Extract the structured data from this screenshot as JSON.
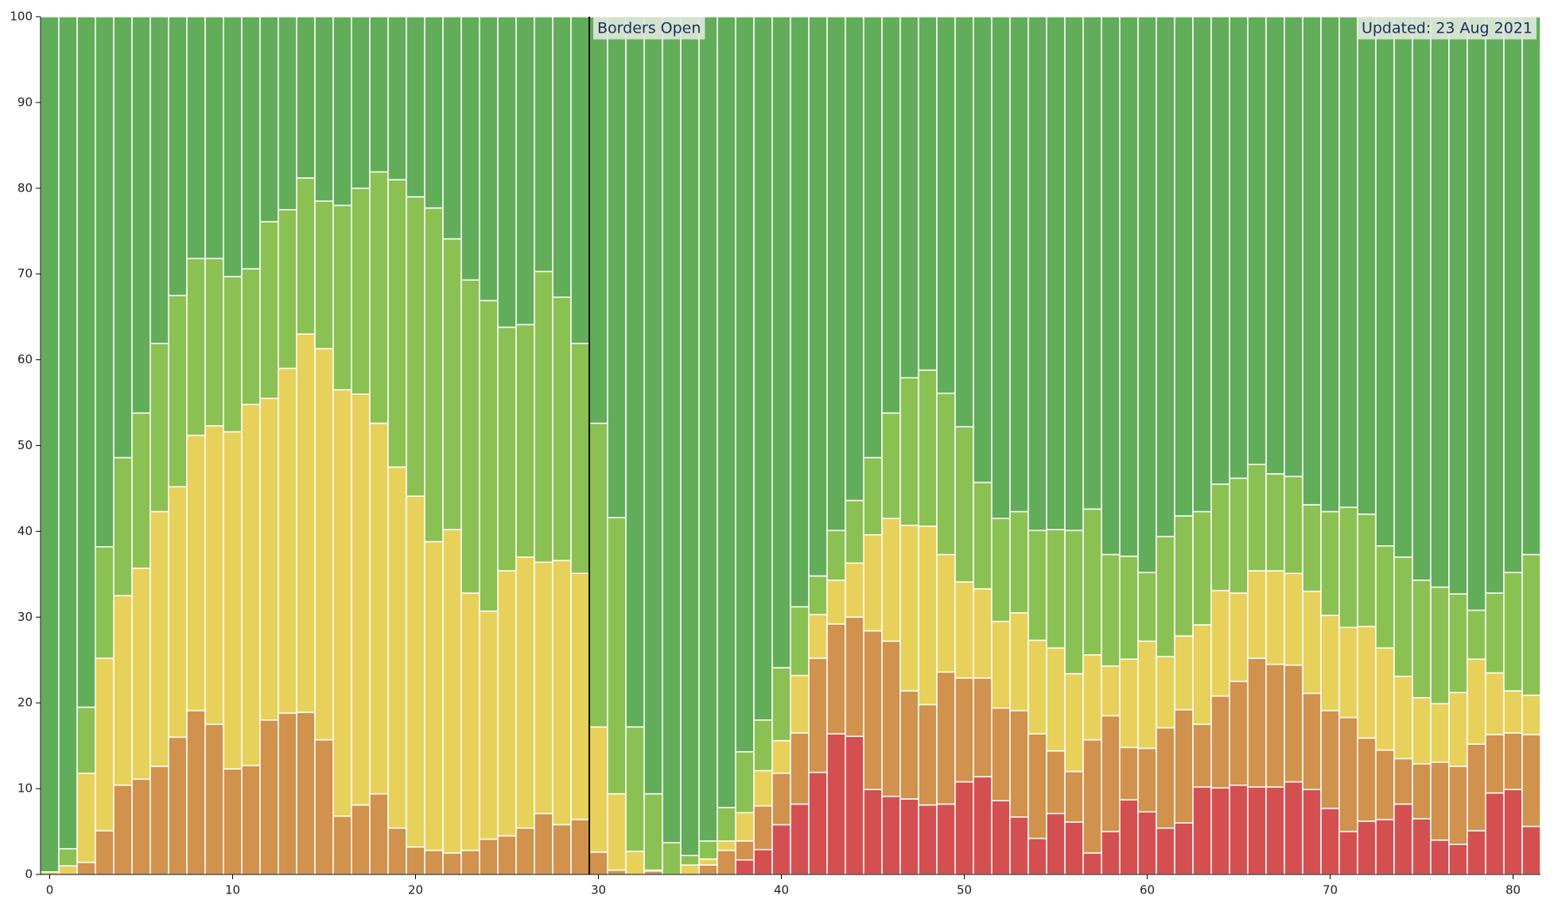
{
  "chart_data": {
    "type": "stacked_bar",
    "x": [
      0,
      1,
      2,
      3,
      4,
      5,
      6,
      7,
      8,
      9,
      10,
      11,
      12,
      13,
      14,
      15,
      16,
      17,
      18,
      19,
      20,
      21,
      22,
      23,
      24,
      25,
      26,
      27,
      28,
      29,
      30,
      31,
      32,
      33,
      34,
      35,
      36,
      37,
      38,
      39,
      40,
      41,
      42,
      43,
      44,
      45,
      46,
      47,
      48,
      49,
      50,
      51,
      52,
      53,
      54,
      55,
      56,
      57,
      58,
      59,
      60,
      61,
      62,
      63,
      64,
      65,
      66,
      67,
      68,
      69,
      70,
      71,
      72,
      73,
      74,
      75,
      76,
      77,
      78,
      79,
      80,
      81
    ],
    "series": [
      {
        "color": "#d45050",
        "values": [
          0,
          0,
          0,
          0,
          0,
          0,
          0,
          0,
          0,
          0,
          0,
          0,
          0,
          0,
          0,
          0,
          0,
          0,
          0,
          0,
          0,
          0,
          0,
          0,
          0,
          0,
          0,
          0,
          0,
          0,
          0,
          0,
          0,
          0,
          0,
          0,
          0,
          0,
          1.7,
          2.9,
          5.8,
          8.2,
          11.9,
          16.4,
          16.1,
          9.9,
          9.1,
          8.8,
          8.1,
          8.2,
          10.8,
          11.4,
          8.6,
          6.7,
          4.2,
          7.1,
          6.1,
          2.5,
          5,
          8.7,
          7.3,
          5.4,
          6,
          10.2,
          10.1,
          10.4,
          10.2,
          10.2,
          10.8,
          9.9,
          7.7,
          5,
          6.2,
          6.4,
          8.2,
          6.5,
          4,
          3.5,
          5.1,
          9.5,
          9.9,
          5.6
        ]
      },
      {
        "color": "#d0924d",
        "values": [
          0,
          0,
          1.4,
          5.1,
          10.4,
          11.1,
          12.6,
          16,
          19.1,
          17.5,
          12.3,
          12.7,
          18,
          18.8,
          18.9,
          15.7,
          6.8,
          8.1,
          9.4,
          5.4,
          3.2,
          2.8,
          2.5,
          2.8,
          4.1,
          4.5,
          5.4,
          7.1,
          5.8,
          6.4,
          2.6,
          0.5,
          0,
          0.4,
          0,
          0,
          1.1,
          2.8,
          2.2,
          5.1,
          6,
          8.3,
          13.3,
          12.8,
          13.9,
          18.5,
          18.1,
          12.6,
          11.7,
          15.4,
          12.1,
          11.5,
          10.8,
          12.4,
          12.2,
          7.3,
          5.9,
          13.2,
          13.5,
          6.1,
          7.4,
          11.7,
          13.2,
          7.3,
          10.7,
          12.1,
          15,
          14.3,
          13.6,
          11.2,
          11.4,
          13.3,
          9.7,
          8.1,
          5.3,
          6.4,
          9.1,
          9.1,
          10.1,
          6.8,
          6.6,
          10.7
        ]
      },
      {
        "color": "#e8d15a",
        "values": [
          0.3,
          1,
          10.4,
          20.1,
          22.1,
          24.6,
          29.7,
          29.2,
          32.1,
          34.8,
          39.3,
          42.1,
          37.5,
          40.2,
          44.1,
          45.6,
          49.7,
          47.9,
          43.2,
          42.1,
          40.9,
          36,
          37.7,
          30,
          26.6,
          30.9,
          31.6,
          29.3,
          30.8,
          28.7,
          14.6,
          8.9,
          2.7,
          0.1,
          0,
          1.1,
          0.7,
          1.1,
          3.3,
          4.1,
          3.8,
          6.7,
          5.1,
          5.1,
          6.3,
          11.2,
          14.3,
          19.3,
          20.8,
          13.7,
          11.2,
          10.4,
          10.1,
          11.4,
          10.9,
          12,
          11.4,
          9.9,
          5.8,
          10.3,
          12.5,
          8.3,
          8.6,
          11.6,
          12.3,
          10.3,
          10.2,
          10.9,
          10.7,
          11.9,
          11.1,
          10.5,
          13,
          11.9,
          9.6,
          7.7,
          6.8,
          8.6,
          9.9,
          7.2,
          4.9,
          4.6
        ]
      },
      {
        "color": "#8bc152",
        "values": [
          0,
          2,
          7.7,
          13,
          16.1,
          18.1,
          19.6,
          22.3,
          20.6,
          19.5,
          18.1,
          15.8,
          20.6,
          18.5,
          18.2,
          17.2,
          21.5,
          24,
          29.3,
          33.5,
          34.9,
          38.9,
          33.9,
          36.5,
          36.2,
          28.4,
          27.1,
          33.9,
          30.7,
          26.8,
          35.4,
          32.2,
          14.5,
          8.9,
          3.7,
          1.1,
          2.1,
          3.9,
          7.1,
          5.9,
          8.5,
          8,
          4.5,
          5.8,
          7.3,
          9,
          12.3,
          17.2,
          18.2,
          18.8,
          18.1,
          12.4,
          12,
          11.8,
          12.8,
          13.8,
          16.7,
          17,
          13,
          12,
          8,
          14,
          14,
          13.2,
          12.4,
          13.4,
          12.4,
          11.3,
          11.3,
          10.1,
          12.1,
          14,
          13.1,
          11.9,
          13.9,
          13.7,
          13.6,
          11.5,
          5.7,
          9.3,
          13.8,
          16.4
        ]
      },
      {
        "color": "#62ad5a",
        "values": [
          99.7,
          97,
          80.5,
          61.8,
          51.4,
          46.2,
          38.1,
          32.5,
          28.2,
          28.2,
          30.3,
          29.4,
          23.9,
          22.5,
          18.8,
          21.5,
          22,
          20,
          18.1,
          19,
          21,
          22.3,
          25.9,
          30.7,
          33.1,
          36.2,
          35.9,
          29.7,
          32.7,
          38.1,
          47.4,
          58.4,
          82.8,
          90.6,
          96.3,
          97.8,
          96.1,
          92.2,
          85.7,
          82,
          75.9,
          68.8,
          65.2,
          59.9,
          56.4,
          51.4,
          46.2,
          42.1,
          41.2,
          43.9,
          47.8,
          54.3,
          58.5,
          57.7,
          59.9,
          59.8,
          59.9,
          57.4,
          62.7,
          62.9,
          64.8,
          60.6,
          58.2,
          57.7,
          54.5,
          53.8,
          52.2,
          53.3,
          53.6,
          56.9,
          57.7,
          57.2,
          58,
          61.7,
          63,
          65.7,
          66.5,
          67.3,
          69.2,
          67.2,
          64.8,
          62.7
        ]
      }
    ],
    "xlim": [
      -0.5,
      81.5
    ],
    "xticks": [
      0,
      10,
      20,
      30,
      40,
      50,
      60,
      70,
      80
    ],
    "ylim": [
      0,
      100
    ],
    "yticks": [
      0,
      10,
      20,
      30,
      40,
      50,
      60,
      70,
      80,
      90,
      100
    ],
    "annotations": [
      {
        "text": "Borders Open",
        "x": 29.5
      },
      {
        "text": "Updated: 23 Aug 2021"
      }
    ]
  }
}
